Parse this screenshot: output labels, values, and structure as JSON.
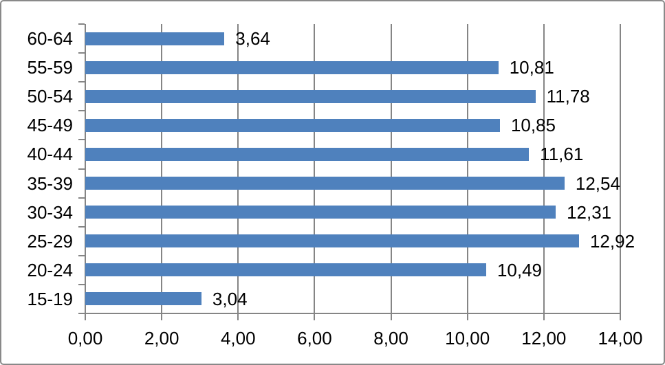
{
  "chart_data": {
    "type": "bar",
    "orientation": "horizontal",
    "title": "",
    "xlabel": "",
    "ylabel": "",
    "categories": [
      "60-64",
      "55-59",
      "50-54",
      "45-49",
      "40-44",
      "35-39",
      "30-34",
      "25-29",
      "20-24",
      "15-19"
    ],
    "values": [
      3.64,
      10.81,
      11.78,
      10.85,
      11.61,
      12.54,
      12.31,
      12.92,
      10.49,
      3.04
    ],
    "value_labels": [
      "3,64",
      "10,81",
      "11,78",
      "10,85",
      "11,61",
      "12,54",
      "12,31",
      "12,92",
      "10,49",
      "3,04"
    ],
    "x_axis": {
      "min": 0,
      "max": 14,
      "tick_step": 2,
      "tick_labels": [
        "0,00",
        "2,00",
        "4,00",
        "6,00",
        "8,00",
        "10,00",
        "12,00",
        "14,00"
      ]
    },
    "grid": true,
    "legend_position": "none",
    "colors": {
      "bar": "#4F81BD",
      "gridline": "#858585",
      "axis": "#858585",
      "text": "#000000",
      "frame_border": "#898989",
      "background": "#FFFFFF"
    }
  }
}
